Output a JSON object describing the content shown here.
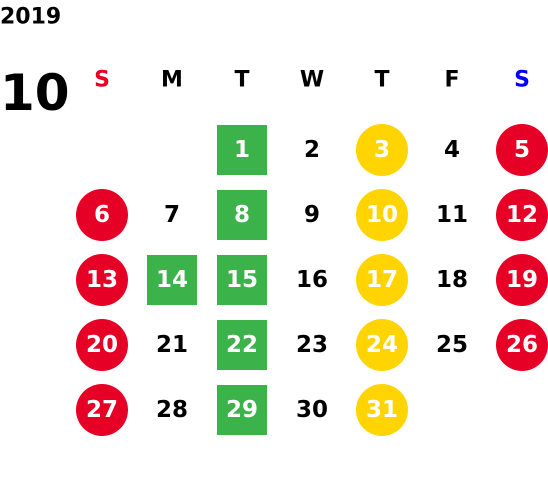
{
  "calendar": {
    "year": "2019",
    "month": "10",
    "weekdays": [
      {
        "text": "S",
        "color": "#e60026"
      },
      {
        "text": "M",
        "color": "#000000"
      },
      {
        "text": "T",
        "color": "#000000"
      },
      {
        "text": "W",
        "color": "#000000"
      },
      {
        "text": "T",
        "color": "#000000"
      },
      {
        "text": "F",
        "color": "#000000"
      },
      {
        "text": "S",
        "color": "#0000ff"
      }
    ],
    "weeks": [
      [
        null,
        null,
        {
          "text": "1",
          "shape": "square",
          "color": "#3bb34a"
        },
        {
          "text": "2"
        },
        {
          "text": "3",
          "shape": "circle",
          "color": "#ffd400"
        },
        {
          "text": "4"
        },
        {
          "text": "5",
          "shape": "circle",
          "color": "#e60026"
        }
      ],
      [
        {
          "text": "6",
          "shape": "circle",
          "color": "#e60026"
        },
        {
          "text": "7"
        },
        {
          "text": "8",
          "shape": "square",
          "color": "#3bb34a"
        },
        {
          "text": "9"
        },
        {
          "text": "10",
          "shape": "circle",
          "color": "#ffd400"
        },
        {
          "text": "11"
        },
        {
          "text": "12",
          "shape": "circle",
          "color": "#e60026"
        }
      ],
      [
        {
          "text": "13",
          "shape": "circle",
          "color": "#e60026"
        },
        {
          "text": "14",
          "shape": "square",
          "color": "#3bb34a"
        },
        {
          "text": "15",
          "shape": "square",
          "color": "#3bb34a"
        },
        {
          "text": "16"
        },
        {
          "text": "17",
          "shape": "circle",
          "color": "#ffd400"
        },
        {
          "text": "18"
        },
        {
          "text": "19",
          "shape": "circle",
          "color": "#e60026"
        }
      ],
      [
        {
          "text": "20",
          "shape": "circle",
          "color": "#e60026"
        },
        {
          "text": "21"
        },
        {
          "text": "22",
          "shape": "square",
          "color": "#3bb34a"
        },
        {
          "text": "23"
        },
        {
          "text": "24",
          "shape": "circle",
          "color": "#ffd400"
        },
        {
          "text": "25"
        },
        {
          "text": "26",
          "shape": "circle",
          "color": "#e60026"
        }
      ],
      [
        {
          "text": "27",
          "shape": "circle",
          "color": "#e60026"
        },
        {
          "text": "28"
        },
        {
          "text": "29",
          "shape": "square",
          "color": "#3bb34a"
        },
        {
          "text": "30"
        },
        {
          "text": "31",
          "shape": "circle",
          "color": "#ffd400"
        },
        null,
        null
      ]
    ]
  }
}
